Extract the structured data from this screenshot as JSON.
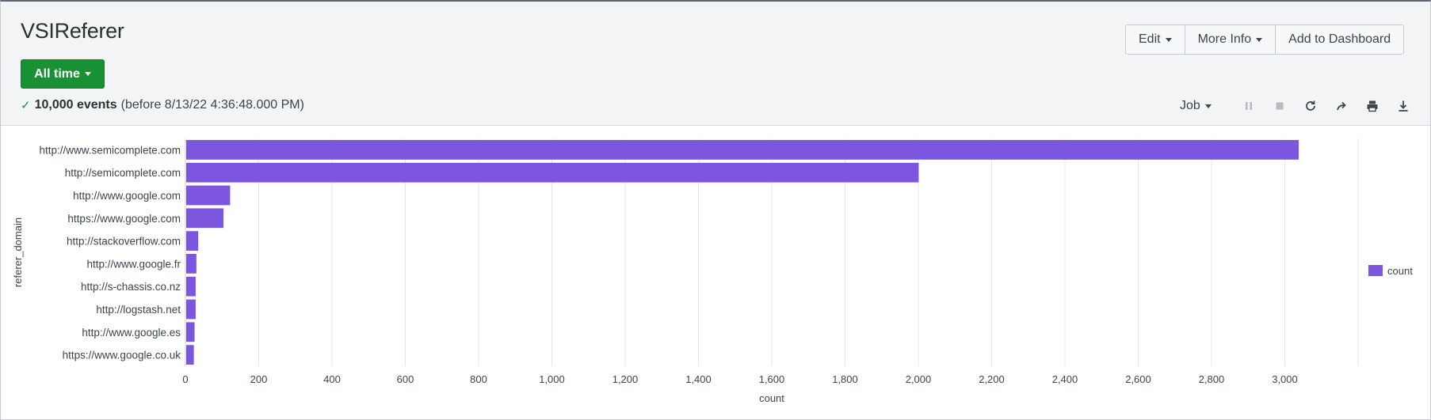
{
  "page": {
    "title": "VSIReferer",
    "time_picker": "All time",
    "status": {
      "event_count": "10,000 events",
      "range": "(before 8/13/22 4:36:48.000 PM)"
    },
    "actions": {
      "edit": "Edit",
      "more_info": "More Info",
      "add_to_dashboard": "Add to Dashboard"
    },
    "toolbar": {
      "job": "Job",
      "icons": [
        "pause-icon",
        "stop-icon",
        "refresh-icon",
        "share-icon",
        "print-icon",
        "download-icon"
      ]
    }
  },
  "chart_data": {
    "type": "bar",
    "orientation": "horizontal",
    "categories": [
      "http://www.semicomplete.com",
      "http://semicomplete.com",
      "http://www.google.com",
      "https://www.google.com",
      "http://stackoverflow.com",
      "http://www.google.fr",
      "http://s-chassis.co.nz",
      "http://logstash.net",
      "http://www.google.es",
      "https://www.google.co.uk"
    ],
    "series": [
      {
        "name": "count",
        "color": "#7c56de",
        "values": [
          3038,
          2001,
          122,
          104,
          35,
          30,
          28,
          28,
          25,
          23
        ]
      }
    ],
    "xlabel": "count",
    "ylabel": "referer_domain",
    "xlim": [
      0,
      3200
    ],
    "xticks": [
      0,
      200,
      400,
      600,
      800,
      1000,
      1200,
      1400,
      1600,
      1800,
      2000,
      2200,
      2400,
      2600,
      2800,
      3000
    ],
    "xtick_labels": [
      "0",
      "200",
      "400",
      "600",
      "800",
      "1,000",
      "1,200",
      "1,400",
      "1,600",
      "1,800",
      "2,000",
      "2,200",
      "2,400",
      "2,600",
      "2,800",
      "3,000"
    ],
    "grid": true,
    "legend": {
      "position": "right",
      "entries": [
        "count"
      ]
    }
  }
}
